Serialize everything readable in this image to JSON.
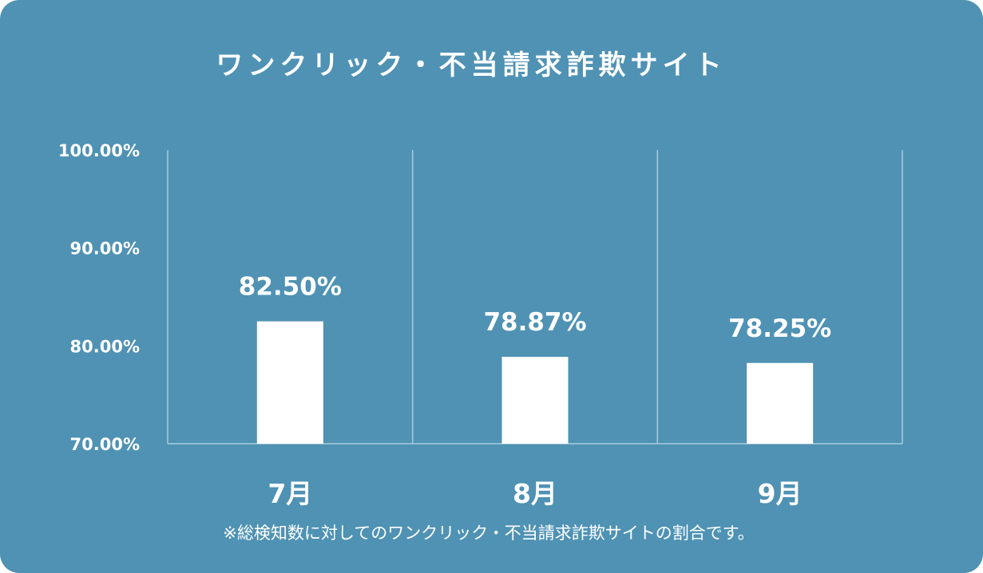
{
  "chart_data": {
    "type": "bar",
    "title": "ワンクリック・不当請求詐欺サイト",
    "categories": [
      "7月",
      "8月",
      "9月"
    ],
    "values": [
      82.5,
      78.87,
      78.25
    ],
    "value_labels": [
      "82.50%",
      "78.87%",
      "78.25%"
    ],
    "ylim": [
      70,
      100
    ],
    "y_ticks": [
      100,
      90,
      80,
      70
    ],
    "y_tick_labels": [
      "100.00%",
      "90.00%",
      "80.00%",
      "70.00%"
    ],
    "xlabel": "",
    "ylabel": "",
    "grid": "vertical separators",
    "legend": "none",
    "colors": {
      "background": "#4f92b4",
      "bar": "#ffffff",
      "text": "#ffffff",
      "grid": "#a9c9da"
    },
    "note": "※総検知数に対してのワンクリック・不当請求詐欺サイトの割合です。"
  }
}
